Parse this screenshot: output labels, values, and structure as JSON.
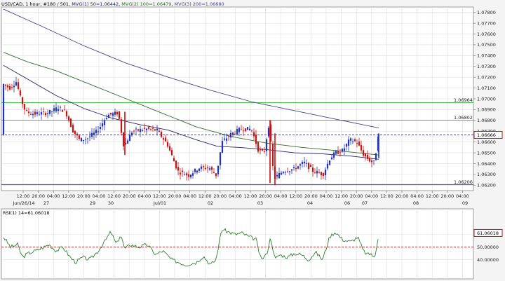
{
  "header": {
    "pair": "USD/CAD",
    "timeframe": "1 hour",
    "bars": "#180 / 501",
    "mvg1": "MVG(1) 50=1.06442",
    "mvg2": "MVG(2) 100=1.06479",
    "mvg3": "MVG(3) 200=1.06680"
  },
  "price_axis": {
    "ticks": [
      "1.07800",
      "1.07700",
      "1.07600",
      "1.07500",
      "1.07400",
      "1.07300",
      "1.07200",
      "1.07100",
      "1.07000",
      "1.06900",
      "1.06800",
      "1.06700",
      "1.06600",
      "1.06500",
      "1.06400",
      "1.06300",
      "1.06200"
    ],
    "current_price": "1.06666"
  },
  "level_labels": [
    "1.06964",
    "1.06802",
    "1.06206"
  ],
  "time_axis": {
    "hours": [
      "12:00",
      "20:00",
      "04:00",
      "12:00",
      "20:00",
      "04:00",
      "12:00",
      "20:00",
      "04:00",
      "12:00",
      "20:00",
      "04:00",
      "12:00",
      "20:00",
      "04:00",
      "12:00",
      "20:00",
      "04:00",
      "12:00",
      "20:00",
      "04:00",
      "12:00",
      "20:00",
      "04:00",
      "12:00",
      "20:00",
      "04:00",
      "12:00",
      "20:00",
      "04:00"
    ],
    "dates": [
      "Jun/26/14",
      "27",
      "29",
      "30",
      "Jul/01",
      "02",
      "03",
      "04",
      "06",
      "07",
      "08",
      "09"
    ]
  },
  "rsi": {
    "label": "RSI(1) 14=61.06018",
    "current_value": "61.06018",
    "ticks": [
      "60.00000",
      "50.00000",
      "40.00000"
    ]
  },
  "colors": {
    "bull": "#2233bb",
    "bear": "#cc1111",
    "ma50": "#222266",
    "ma100": "#2e6b2e",
    "ma200": "#444488",
    "level": "#22bb22",
    "rsi_line": "#2e7d2e"
  },
  "chart_data": {
    "type": "candlestick",
    "series": [
      {
        "name": "USD/CAD",
        "approx_close_path": [
          1.0714,
          1.0703,
          1.0686,
          1.0688,
          1.0675,
          1.0662,
          1.0665,
          1.0682,
          1.0664,
          1.0668,
          1.0656,
          1.0633,
          1.0632,
          1.0638,
          1.0663,
          1.0668,
          1.0673,
          1.065,
          1.0623,
          1.063,
          1.0635,
          1.0643,
          1.0638,
          1.0642,
          1.0648,
          1.0636,
          1.0667
        ]
      },
      {
        "name": "MVG(1) 50",
        "value": 1.06442
      },
      {
        "name": "MVG(2) 100",
        "value": 1.06479
      },
      {
        "name": "MVG(3) 200",
        "value": 1.0668
      }
    ],
    "ylim": [
      1.0615,
      1.0785
    ]
  }
}
